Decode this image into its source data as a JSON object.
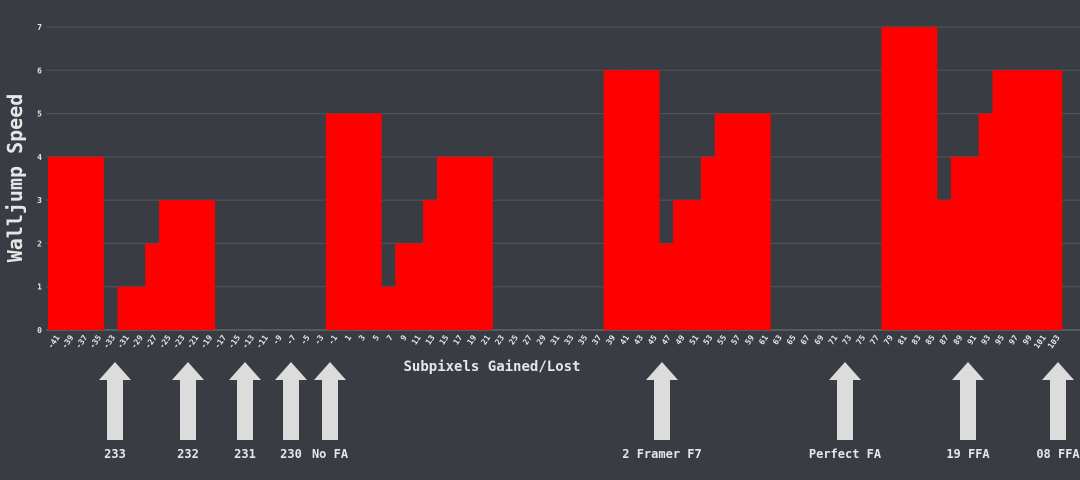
{
  "chart_data": {
    "type": "bar",
    "ylabel": "Walljump Speed",
    "xlabel": "Subpixels Gained/Lost",
    "categories": [
      -41,
      -39,
      -37,
      -35,
      -33,
      -31,
      -29,
      -27,
      -25,
      -23,
      -21,
      -19,
      -17,
      -15,
      -13,
      -11,
      -9,
      -7,
      -5,
      -3,
      -1,
      1,
      3,
      5,
      7,
      9,
      11,
      13,
      15,
      17,
      19,
      21,
      23,
      25,
      27,
      29,
      31,
      33,
      35,
      37,
      39,
      41,
      43,
      45,
      47,
      49,
      51,
      53,
      55,
      57,
      59,
      61,
      63,
      65,
      67,
      69,
      71,
      73,
      75,
      77,
      79,
      81,
      83,
      85,
      87,
      89,
      91,
      93,
      95,
      97,
      99,
      101,
      103
    ],
    "values": [
      4,
      4,
      4,
      4,
      0,
      1,
      1,
      2,
      3,
      3,
      3,
      3,
      0,
      0,
      0,
      0,
      0,
      0,
      0,
      0,
      5,
      5,
      5,
      5,
      1,
      2,
      2,
      3,
      4,
      4,
      4,
      4,
      0,
      0,
      0,
      0,
      0,
      0,
      0,
      0,
      6,
      6,
      6,
      6,
      2,
      3,
      3,
      4,
      5,
      5,
      5,
      5,
      0,
      0,
      0,
      0,
      0,
      0,
      0,
      0,
      7,
      7,
      7,
      7,
      3,
      4,
      4,
      5,
      6,
      6,
      6,
      6,
      6
    ],
    "color": "#ff0000",
    "ylim": [
      0,
      7
    ],
    "yticks": [
      0,
      1,
      2,
      3,
      4,
      5,
      6,
      7
    ],
    "grid": true,
    "annotations": [
      "233",
      "232",
      "231",
      "230",
      "No FA",
      "2 Framer F7",
      "Perfect FA",
      "19 FFA",
      "08 FFA"
    ]
  }
}
